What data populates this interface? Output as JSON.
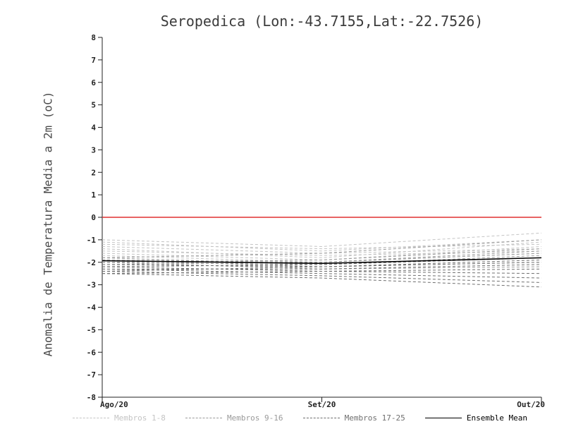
{
  "chart_data": {
    "type": "line",
    "title": "Seropedica (Lon:-43.7155,Lat:-22.7526)",
    "ylabel": "Anomalia de Temperatura Media a 2m (oC)",
    "x_categories": [
      "Ago/20",
      "Set/20",
      "Out/20"
    ],
    "ylim": [
      -8,
      8
    ],
    "ytick_step": 1,
    "ytick_labels": [
      "8",
      "7",
      "6",
      "5",
      "4",
      "3",
      "2",
      "1",
      "0",
      "-1",
      "-2",
      "-3",
      "-4",
      "-5",
      "-6",
      "-7",
      "-8"
    ],
    "grid": false,
    "zero_line_color": "#e03030",
    "axis_color": "#222222",
    "groups": [
      {
        "name": "Membros 1-8",
        "color": "#c4c4c4",
        "style": "dashed",
        "members": [
          0,
          1,
          2,
          3,
          4,
          5,
          6,
          7
        ]
      },
      {
        "name": "Membros 9-16",
        "color": "#9a9a9a",
        "style": "dashed",
        "members": [
          8,
          9,
          10,
          11,
          12,
          13,
          14,
          15
        ]
      },
      {
        "name": "Membros 17-25",
        "color": "#6f6f6f",
        "style": "dashed",
        "members": [
          16,
          17,
          18,
          19,
          20,
          21,
          22,
          23,
          24
        ]
      }
    ],
    "members": [
      [
        -1.0,
        -1.3,
        -0.7
      ],
      [
        -1.1,
        -1.5,
        -1.0
      ],
      [
        -1.2,
        -1.4,
        -1.2
      ],
      [
        -1.3,
        -1.6,
        -1.4
      ],
      [
        -1.4,
        -1.8,
        -1.1
      ],
      [
        -1.5,
        -1.7,
        -1.5
      ],
      [
        -1.6,
        -1.9,
        -1.3
      ],
      [
        -1.7,
        -2.0,
        -1.6
      ],
      [
        -1.8,
        -1.6,
        -1.0
      ],
      [
        -1.8,
        -2.1,
        -1.8
      ],
      [
        -1.9,
        -2.0,
        -1.5
      ],
      [
        -1.9,
        -2.2,
        -2.0
      ],
      [
        -2.0,
        -1.9,
        -1.4
      ],
      [
        -2.0,
        -2.1,
        -1.7
      ],
      [
        -2.0,
        -2.3,
        -2.2
      ],
      [
        -2.1,
        -2.0,
        -1.6
      ],
      [
        -2.1,
        -2.2,
        -1.9
      ],
      [
        -2.2,
        -2.4,
        -2.5
      ],
      [
        -2.2,
        -2.1,
        -1.8
      ],
      [
        -2.3,
        -2.3,
        -2.1
      ],
      [
        -2.3,
        -2.5,
        -2.7
      ],
      [
        -2.4,
        -2.2,
        -2.0
      ],
      [
        -2.4,
        -2.6,
        -2.9
      ],
      [
        -2.5,
        -2.4,
        -2.3
      ],
      [
        -2.5,
        -2.7,
        -3.1
      ]
    ],
    "ensemble_mean": {
      "name": "Ensemble Mean",
      "color": "#000000",
      "style": "solid",
      "values": [
        -1.93,
        -2.05,
        -1.8
      ]
    },
    "legend": [
      {
        "label": "Membros 1-8",
        "color": "#c4c4c4",
        "dashed": true
      },
      {
        "label": "Membros 9-16",
        "color": "#9a9a9a",
        "dashed": true
      },
      {
        "label": "Membros 17-25",
        "color": "#6f6f6f",
        "dashed": true
      },
      {
        "label": "Ensemble Mean",
        "color": "#000000",
        "dashed": false
      }
    ]
  }
}
